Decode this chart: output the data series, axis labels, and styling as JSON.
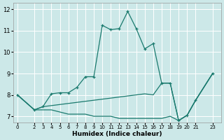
{
  "xlabel": "Humidex (Indice chaleur)",
  "bg_color": "#cce8e8",
  "grid_color": "#ffffff",
  "line_color": "#1a7a6e",
  "xlim": [
    -0.5,
    24
  ],
  "ylim": [
    6.7,
    12.3
  ],
  "xticks": [
    0,
    2,
    3,
    4,
    5,
    6,
    7,
    8,
    9,
    10,
    11,
    12,
    13,
    14,
    15,
    16,
    17,
    18,
    19,
    20,
    21,
    23
  ],
  "yticks": [
    7,
    8,
    9,
    10,
    11,
    12
  ],
  "series": [
    {
      "x": [
        0,
        2,
        3,
        4,
        5,
        6,
        7,
        8,
        9,
        10,
        11,
        12,
        13,
        14,
        15,
        16,
        17,
        18,
        19,
        20,
        21,
        23
      ],
      "y": [
        8.0,
        7.3,
        7.45,
        8.05,
        8.1,
        8.1,
        8.35,
        8.85,
        8.85,
        11.25,
        11.05,
        11.1,
        11.9,
        11.1,
        10.15,
        10.4,
        8.55,
        8.55,
        6.8,
        7.05,
        7.75,
        9.0
      ],
      "marker": true
    },
    {
      "x": [
        0,
        2,
        3,
        4,
        5,
        6,
        7,
        8,
        9,
        10,
        11,
        12,
        13,
        14,
        15,
        16,
        17,
        18,
        19,
        20,
        21,
        23
      ],
      "y": [
        8.0,
        7.3,
        7.45,
        7.5,
        7.55,
        7.6,
        7.65,
        7.7,
        7.75,
        7.8,
        7.85,
        7.9,
        7.95,
        8.0,
        8.05,
        8.0,
        8.55,
        8.55,
        6.8,
        7.05,
        7.75,
        9.0
      ],
      "marker": false
    },
    {
      "x": [
        0,
        2,
        3,
        4,
        5,
        6,
        7,
        8,
        9,
        10,
        11,
        12,
        13,
        14,
        15,
        16,
        17,
        18,
        19,
        20,
        21,
        23
      ],
      "y": [
        8.0,
        7.3,
        7.3,
        7.3,
        7.2,
        7.1,
        7.1,
        7.1,
        7.0,
        7.0,
        7.0,
        6.9,
        6.9,
        6.9,
        6.9,
        6.9,
        6.9,
        7.0,
        6.8,
        7.05,
        7.75,
        9.0
      ],
      "marker": false
    }
  ]
}
